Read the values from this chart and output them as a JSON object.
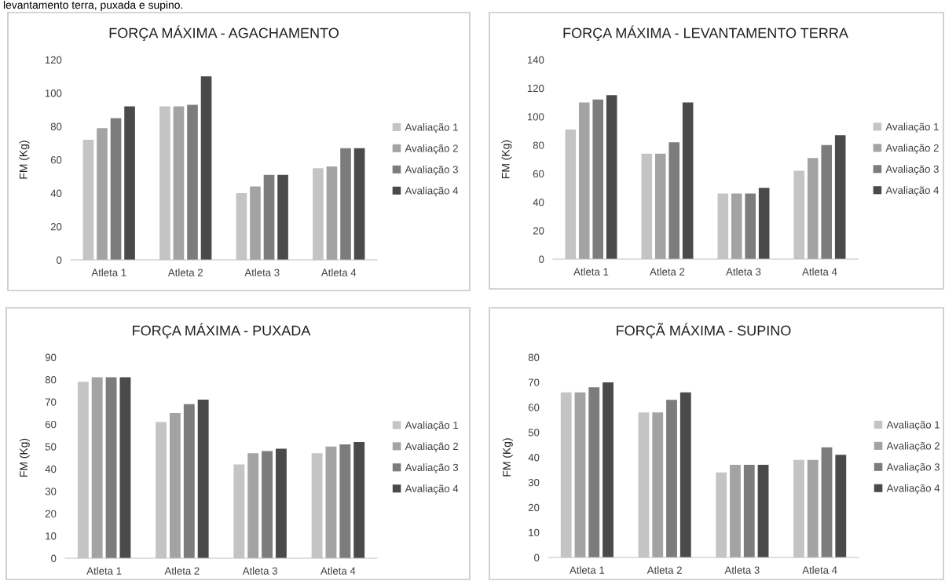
{
  "chart_data": [
    {
      "type": "bar",
      "title": "FORÇA MÁXIMA - AGACHAMENTO",
      "ylabel": "FM (Kg)",
      "annotations": [
        "levantamento terra, puxada e supino."
      ],
      "categories": [
        "Atleta 1",
        "Atleta 2",
        "Atleta 3",
        "Atleta 4"
      ],
      "ylim": [
        0,
        120
      ],
      "yticks": [
        0,
        20,
        40,
        60,
        80,
        100,
        120
      ],
      "grid": false,
      "legend": "right",
      "series": [
        {
          "name": "Avaliação 1",
          "color": "#c4c4c4",
          "values": [
            72,
            92,
            40,
            55
          ]
        },
        {
          "name": "Avaliação 2",
          "color": "#a3a3a3",
          "values": [
            79,
            92,
            44,
            56
          ]
        },
        {
          "name": "Avaliação 3",
          "color": "#7c7c7c",
          "values": [
            85,
            93,
            51,
            67
          ]
        },
        {
          "name": "Avaliação 4",
          "color": "#4a4a4a",
          "values": [
            92,
            110,
            51,
            67
          ]
        }
      ]
    },
    {
      "type": "bar",
      "title": "FORÇA MÁXIMA - LEVANTAMENTO TERRA",
      "ylabel": "FM (Kg)",
      "categories": [
        "Atleta 1",
        "Atleta 2",
        "Atleta 3",
        "Atleta 4"
      ],
      "ylim": [
        0,
        140
      ],
      "yticks": [
        0,
        20,
        40,
        60,
        80,
        100,
        120,
        140
      ],
      "grid": false,
      "legend": "right",
      "series": [
        {
          "name": "Avaliação 1",
          "color": "#c4c4c4",
          "values": [
            91,
            74,
            46,
            62
          ]
        },
        {
          "name": "Avaliação 2",
          "color": "#a3a3a3",
          "values": [
            110,
            74,
            46,
            71
          ]
        },
        {
          "name": "Avaliação 3",
          "color": "#7c7c7c",
          "values": [
            112,
            82,
            46,
            80
          ]
        },
        {
          "name": "Avaliação 4",
          "color": "#4a4a4a",
          "values": [
            115,
            110,
            50,
            87
          ]
        }
      ]
    },
    {
      "type": "bar",
      "title": "FORÇA MÁXIMA - PUXADA",
      "ylabel": "FM (Kg)",
      "categories": [
        "Atleta 1",
        "Atleta 2",
        "Atleta 3",
        "Atleta 4"
      ],
      "ylim": [
        0,
        90
      ],
      "yticks": [
        0,
        10,
        20,
        30,
        40,
        50,
        60,
        70,
        80,
        90
      ],
      "grid": false,
      "legend": "right",
      "series": [
        {
          "name": "Avaliação 1",
          "color": "#c4c4c4",
          "values": [
            79,
            61,
            42,
            47
          ]
        },
        {
          "name": "Avaliação 2",
          "color": "#a3a3a3",
          "values": [
            81,
            65,
            47,
            50
          ]
        },
        {
          "name": "Avaliação 3",
          "color": "#7c7c7c",
          "values": [
            81,
            69,
            48,
            51
          ]
        },
        {
          "name": "Avaliação 4",
          "color": "#4a4a4a",
          "values": [
            81,
            71,
            49,
            52
          ]
        }
      ]
    },
    {
      "type": "bar",
      "title": "FORÇÃ MÁXIMA - SUPINO",
      "ylabel": "FM (Kg)",
      "categories": [
        "Atleta 1",
        "Atleta 2",
        "Atleta 3",
        "Atleta 4"
      ],
      "ylim": [
        0,
        80
      ],
      "yticks": [
        0,
        10,
        20,
        30,
        40,
        50,
        60,
        70,
        80
      ],
      "grid": false,
      "legend": "right",
      "series": [
        {
          "name": "Avaliação 1",
          "color": "#c4c4c4",
          "values": [
            66,
            58,
            34,
            39
          ]
        },
        {
          "name": "Avaliação 2",
          "color": "#a3a3a3",
          "values": [
            66,
            58,
            37,
            39
          ]
        },
        {
          "name": "Avaliação 3",
          "color": "#7c7c7c",
          "values": [
            68,
            63,
            37,
            44
          ]
        },
        {
          "name": "Avaliação 4",
          "color": "#4a4a4a",
          "values": [
            70,
            66,
            37,
            41
          ]
        }
      ]
    }
  ]
}
